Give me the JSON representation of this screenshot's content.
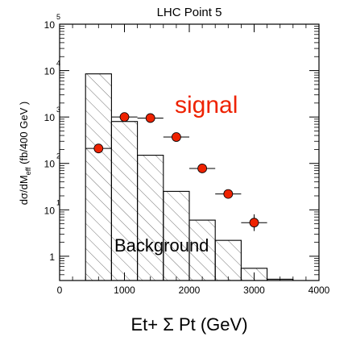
{
  "chart_data": {
    "type": "step_histogram_with_points",
    "title": "LHC Point 5",
    "xlabel": "Et+ Σ Pt  (GeV)",
    "ylabel": "dσ/dM",
    "ylabel_sub": "eff",
    "ylabel_tail": " (fb/400 GeV  )",
    "xlim": [
      0,
      4000
    ],
    "ylim": [
      0.3,
      100000
    ],
    "y_scale": "log",
    "x_ticks": [
      {
        "value": 0,
        "label": "0"
      },
      {
        "value": 1000,
        "label": "1000"
      },
      {
        "value": 2000,
        "label": "2000"
      },
      {
        "value": 3000,
        "label": "3000"
      },
      {
        "value": 4000,
        "label": "4000"
      }
    ],
    "y_ticks": [
      {
        "value": 1,
        "base": "1",
        "exp": ""
      },
      {
        "value": 10,
        "base": "10",
        "exp": "1"
      },
      {
        "value": 100,
        "base": "10",
        "exp": "2"
      },
      {
        "value": 1000,
        "base": "10",
        "exp": "3"
      },
      {
        "value": 10000,
        "base": "10",
        "exp": "4"
      },
      {
        "value": 100000,
        "base": "10",
        "exp": "5"
      }
    ],
    "series": [
      {
        "name": "Background",
        "kind": "histogram",
        "bins": [
          {
            "x0": 400,
            "x1": 800,
            "y": 8500
          },
          {
            "x0": 800,
            "x1": 1200,
            "y": 800
          },
          {
            "x0": 1200,
            "x1": 1600,
            "y": 150
          },
          {
            "x0": 1600,
            "x1": 2000,
            "y": 25
          },
          {
            "x0": 2000,
            "x1": 2400,
            "y": 6
          },
          {
            "x0": 2400,
            "x1": 2800,
            "y": 2.2
          },
          {
            "x0": 2800,
            "x1": 3200,
            "y": 0.55
          },
          {
            "x0": 3200,
            "x1": 3600,
            "y": 0.32
          }
        ]
      },
      {
        "name": "signal",
        "kind": "points",
        "color": "#ee2200",
        "points": [
          {
            "x": 600,
            "y": 210,
            "xerr": 200,
            "ylo": 190,
            "yhi": 235
          },
          {
            "x": 1000,
            "y": 1000,
            "xerr": 200,
            "ylo": 960,
            "yhi": 1040
          },
          {
            "x": 1400,
            "y": 950,
            "xerr": 200,
            "ylo": 910,
            "yhi": 990
          },
          {
            "x": 1800,
            "y": 370,
            "xerr": 200,
            "ylo": 345,
            "yhi": 395
          },
          {
            "x": 2200,
            "y": 78,
            "xerr": 200,
            "ylo": 70,
            "yhi": 87
          },
          {
            "x": 2600,
            "y": 22,
            "xerr": 200,
            "ylo": 19,
            "yhi": 26
          },
          {
            "x": 3000,
            "y": 5.3,
            "xerr": 200,
            "ylo": 3.5,
            "yhi": 8
          }
        ]
      }
    ],
    "annotations": {
      "signal_label": "signal",
      "background_label": "Background"
    },
    "colors": {
      "signal": "#ee2200",
      "axes": "#000000"
    },
    "grid": false
  }
}
